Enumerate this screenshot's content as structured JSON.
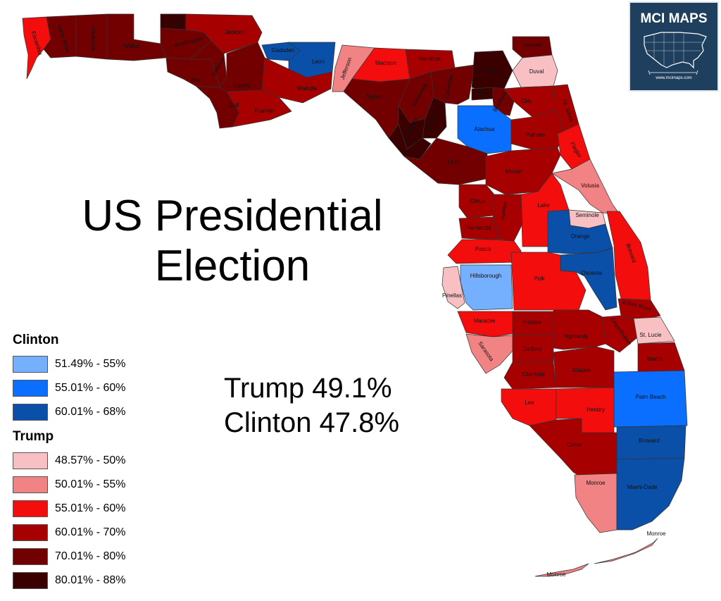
{
  "title_lines": [
    "US Presidential",
    "Election"
  ],
  "results": [
    "Trump  49.1%",
    "Clinton 47.8%"
  ],
  "legend": {
    "clinton": {
      "heading": "Clinton",
      "items": [
        {
          "label": "51.49% - 55%",
          "color": "#74b0ff"
        },
        {
          "label": "55.01% - 60%",
          "color": "#0a6eff"
        },
        {
          "label": "60.01% - 68%",
          "color": "#0a4fa8"
        }
      ]
    },
    "trump": {
      "heading": "Trump",
      "items": [
        {
          "label": "48.57% - 50%",
          "color": "#f9c0c4"
        },
        {
          "label": "50.01% - 55%",
          "color": "#f28385"
        },
        {
          "label": "55.01% - 60%",
          "color": "#f30d0d"
        },
        {
          "label": "60.01% - 70%",
          "color": "#a70000"
        },
        {
          "label": "70.01% - 80%",
          "color": "#730000"
        },
        {
          "label": "80.01% - 88%",
          "color": "#3a0000"
        }
      ]
    }
  },
  "logo": {
    "title": "MCI MAPS",
    "url": "www.mcimaps.com"
  },
  "colors": {
    "clinton_51_55": "#74b0ff",
    "clinton_55_60": "#0a6eff",
    "clinton_60_68": "#0a4fa8",
    "trump_48_50": "#f9c0c4",
    "trump_50_55": "#f28385",
    "trump_55_60": "#f30d0d",
    "trump_60_70": "#a70000",
    "trump_70_80": "#730000",
    "trump_80_88": "#3a0000"
  },
  "counties": [
    {
      "name": "Escambia",
      "bin": "trump_55_60"
    },
    {
      "name": "Santa Rosa",
      "bin": "trump_70_80"
    },
    {
      "name": "Okaloosa",
      "bin": "trump_70_80"
    },
    {
      "name": "Walton",
      "bin": "trump_70_80"
    },
    {
      "name": "Holmes",
      "bin": "trump_80_88"
    },
    {
      "name": "Washington",
      "bin": "trump_70_80"
    },
    {
      "name": "Jackson",
      "bin": "trump_60_70"
    },
    {
      "name": "Bay",
      "bin": "trump_70_80"
    },
    {
      "name": "Calhoun",
      "bin": "trump_70_80"
    },
    {
      "name": "Liberty",
      "bin": "trump_70_80"
    },
    {
      "name": "Gulf",
      "bin": "trump_70_80"
    },
    {
      "name": "Franklin",
      "bin": "trump_60_70"
    },
    {
      "name": "Gadsden",
      "bin": "clinton_60_68"
    },
    {
      "name": "Leon",
      "bin": "clinton_60_68"
    },
    {
      "name": "Wakulla",
      "bin": "trump_60_70"
    },
    {
      "name": "Jefferson",
      "bin": "trump_50_55"
    },
    {
      "name": "Madison",
      "bin": "trump_55_60"
    },
    {
      "name": "Hamilton",
      "bin": "trump_60_70"
    },
    {
      "name": "Taylor",
      "bin": "trump_70_80"
    },
    {
      "name": "Suwannee",
      "bin": "trump_70_80"
    },
    {
      "name": "Columbia",
      "bin": "trump_70_80"
    },
    {
      "name": "Baker",
      "bin": "trump_80_88"
    },
    {
      "name": "Lafayette",
      "bin": "trump_80_88"
    },
    {
      "name": "Dixie",
      "bin": "trump_80_88"
    },
    {
      "name": "Gilchrist",
      "bin": "trump_80_88"
    },
    {
      "name": "Union",
      "bin": "trump_80_88"
    },
    {
      "name": "Bradford",
      "bin": "trump_70_80"
    },
    {
      "name": "Nassau",
      "bin": "trump_70_80"
    },
    {
      "name": "Duval",
      "bin": "trump_48_50"
    },
    {
      "name": "Clay",
      "bin": "trump_60_70"
    },
    {
      "name": "St. Johns",
      "bin": "trump_60_70"
    },
    {
      "name": "Alachua",
      "bin": "clinton_55_60"
    },
    {
      "name": "Putnam",
      "bin": "trump_60_70"
    },
    {
      "name": "Flagler",
      "bin": "trump_55_60"
    },
    {
      "name": "Levy",
      "bin": "trump_70_80"
    },
    {
      "name": "Marion",
      "bin": "trump_60_70"
    },
    {
      "name": "Volusia",
      "bin": "trump_50_55"
    },
    {
      "name": "Lake",
      "bin": "trump_55_60"
    },
    {
      "name": "Seminole",
      "bin": "trump_48_50"
    },
    {
      "name": "Citrus",
      "bin": "trump_60_70"
    },
    {
      "name": "Sumter",
      "bin": "trump_60_70"
    },
    {
      "name": "Hernando",
      "bin": "trump_60_70"
    },
    {
      "name": "Pasco",
      "bin": "trump_55_60"
    },
    {
      "name": "Orange",
      "bin": "clinton_60_68"
    },
    {
      "name": "Osceola",
      "bin": "clinton_60_68"
    },
    {
      "name": "Brevard",
      "bin": "trump_55_60"
    },
    {
      "name": "Hillsborough",
      "bin": "clinton_51_55"
    },
    {
      "name": "Pinellas",
      "bin": "trump_48_50"
    },
    {
      "name": "Polk",
      "bin": "trump_55_60"
    },
    {
      "name": "Indian River",
      "bin": "trump_60_70"
    },
    {
      "name": "Manatee",
      "bin": "trump_55_60"
    },
    {
      "name": "Hardee",
      "bin": "trump_60_70"
    },
    {
      "name": "Highlands",
      "bin": "trump_60_70"
    },
    {
      "name": "Okeechobee",
      "bin": "trump_60_70"
    },
    {
      "name": "St. Lucie",
      "bin": "trump_48_50"
    },
    {
      "name": "Sarasota",
      "bin": "trump_50_55"
    },
    {
      "name": "DeSoto",
      "bin": "trump_60_70"
    },
    {
      "name": "Martin",
      "bin": "trump_60_70"
    },
    {
      "name": "Charlotte",
      "bin": "trump_60_70"
    },
    {
      "name": "Glades",
      "bin": "trump_60_70"
    },
    {
      "name": "Palm Beach",
      "bin": "clinton_55_60"
    },
    {
      "name": "Lee",
      "bin": "trump_55_60"
    },
    {
      "name": "Hendry",
      "bin": "trump_55_60"
    },
    {
      "name": "Collier",
      "bin": "trump_60_70"
    },
    {
      "name": "Broward",
      "bin": "clinton_60_68"
    },
    {
      "name": "Monroe",
      "bin": "trump_50_55"
    },
    {
      "name": "Miami-Dade",
      "bin": "clinton_60_68"
    }
  ]
}
